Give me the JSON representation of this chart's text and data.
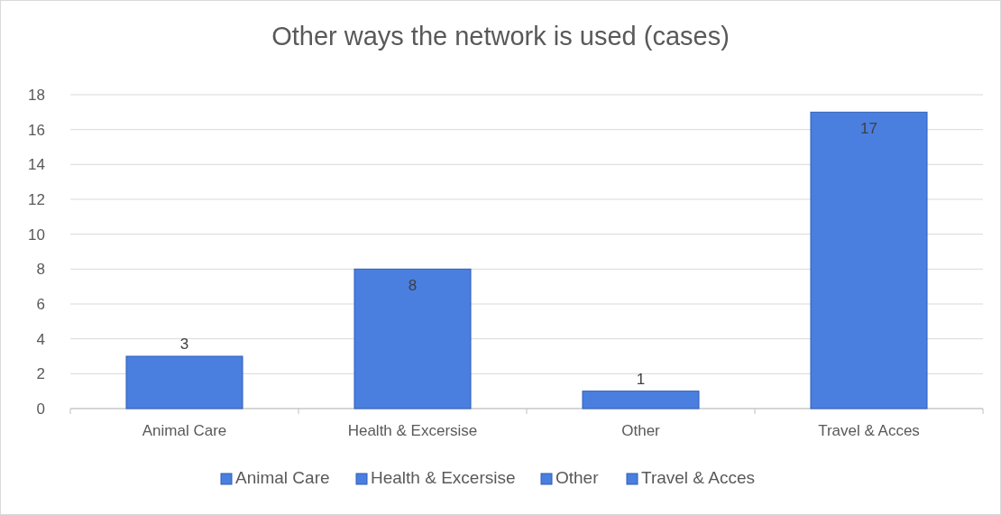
{
  "chart_data": {
    "type": "bar",
    "title": "Other ways the network is used (cases)",
    "categories": [
      "Animal Care",
      "Health & Excersise",
      "Other",
      "Travel & Acces"
    ],
    "series": [
      {
        "name": "Animal Care",
        "color": "#4a7fe0",
        "values": [
          3,
          null,
          null,
          null
        ]
      },
      {
        "name": "Health & Excersise",
        "color": "#4a7fe0",
        "values": [
          null,
          8,
          null,
          null
        ]
      },
      {
        "name": "Other",
        "color": "#4a7fe0",
        "values": [
          null,
          null,
          1,
          null
        ]
      },
      {
        "name": "Travel & Acces",
        "color": "#4a7fe0",
        "values": [
          null,
          null,
          null,
          17
        ]
      }
    ],
    "ylim": [
      0,
      18
    ],
    "yticks": [
      0,
      2,
      4,
      6,
      8,
      10,
      12,
      14,
      16,
      18
    ],
    "grid": "y",
    "legend": "bottom",
    "data_labels": true
  }
}
